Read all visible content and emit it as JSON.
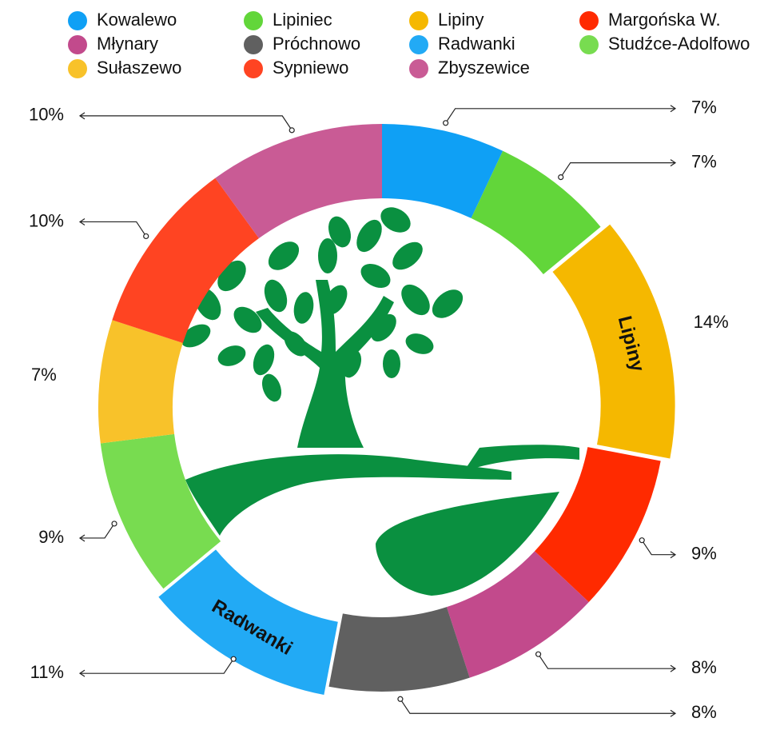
{
  "chart_data": {
    "type": "donut",
    "categories": [
      "Kowalewo",
      "Lipiniec",
      "Lipiny",
      "Margońska W.",
      "Młynary",
      "Próchnowo",
      "Radwanki",
      "Studźce-Adolfowo",
      "Sułaszewo",
      "Sypniewo",
      "Zbyszewice"
    ],
    "values": [
      7,
      7,
      14,
      9,
      8,
      8,
      11,
      9,
      7,
      10,
      10
    ],
    "value_labels": [
      "7%",
      "7%",
      "14%",
      "9%",
      "8%",
      "8%",
      "11%",
      "9%",
      "7%",
      "10%",
      "10%"
    ],
    "colors": [
      "#0fa0f5",
      "#62d63a",
      "#f5b800",
      "#ff2a00",
      "#c24a8c",
      "#606060",
      "#22aaf5",
      "#78dc50",
      "#f8c22a",
      "#ff4422",
      "#c95b95"
    ],
    "explode": [
      false,
      false,
      true,
      false,
      false,
      false,
      true,
      false,
      false,
      false,
      false
    ],
    "legend": true
  }
}
